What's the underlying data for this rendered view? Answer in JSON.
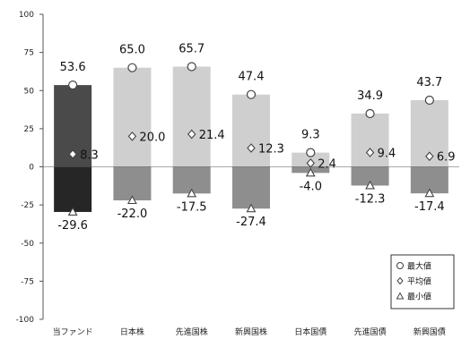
{
  "chart_data": {
    "type": "bar",
    "categories": [
      "当ファンド",
      "日本株",
      "先進国株",
      "新興国株",
      "日本国債",
      "先進国債",
      "新興国債"
    ],
    "series": [
      {
        "name": "最大値",
        "marker": "circle",
        "values": [
          53.6,
          65.0,
          65.7,
          47.4,
          9.3,
          34.9,
          43.7
        ]
      },
      {
        "name": "平均値",
        "marker": "diamond",
        "values": [
          8.3,
          20.0,
          21.4,
          12.3,
          2.4,
          9.4,
          6.9
        ]
      },
      {
        "name": "最小値",
        "marker": "triangle",
        "values": [
          -29.6,
          -22.0,
          -17.5,
          -27.4,
          -4.0,
          -12.3,
          -17.4
        ]
      }
    ],
    "value_labels": {
      "max": [
        "53.6",
        "65.0",
        "65.7",
        "47.4",
        "9.3",
        "34.9",
        "43.7"
      ],
      "avg": [
        "8.3",
        "20.0",
        "21.4",
        "12.3",
        "2.4",
        "9.4",
        "6.9"
      ],
      "min": [
        "-29.6",
        "-22.0",
        "-17.5",
        "-27.4",
        "-4.0",
        "-12.3",
        "-17.4"
      ]
    },
    "ylim": [
      -100,
      100
    ],
    "yticks": [
      "100",
      "75",
      "50",
      "25",
      "0",
      "-25",
      "-50",
      "-75",
      "-100"
    ],
    "legend_position": "bottom-right",
    "grid": false
  },
  "colors": {
    "fund_positive": "#4a4a4a",
    "fund_negative": "#262626",
    "other_positive": "#cfcfcf",
    "other_negative": "#8e8e8e",
    "axis": "#555555",
    "marker_fill": "#ffffff",
    "marker_stroke": "#444444"
  }
}
